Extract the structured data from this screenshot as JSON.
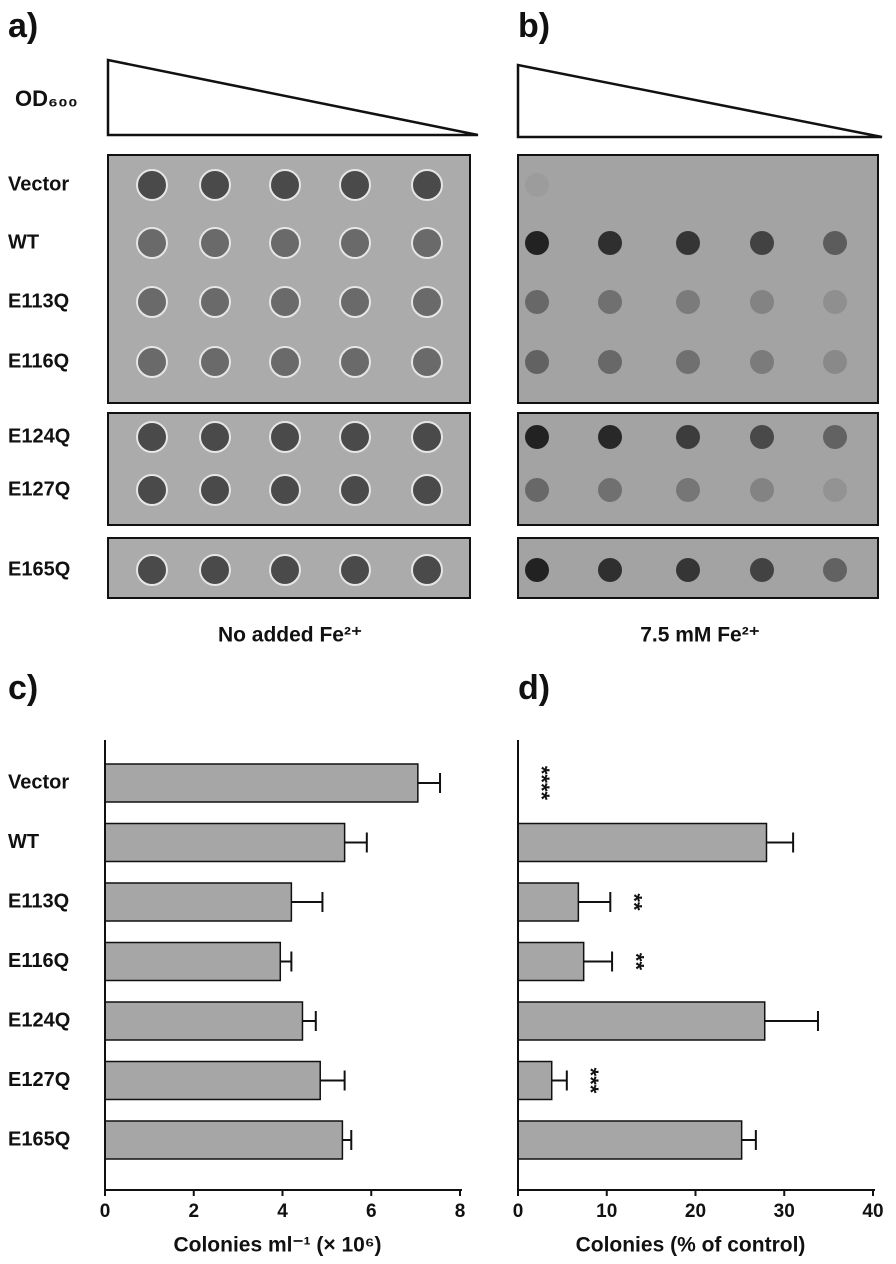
{
  "figure": {
    "od_label": "OD₆₀₀",
    "strains": [
      "Vector",
      "WT",
      "E113Q",
      "E116Q",
      "E124Q",
      "E127Q",
      "E165Q"
    ],
    "panels": [
      {
        "label": "a)",
        "caption": "No added Fe²⁺"
      },
      {
        "label": "b)",
        "caption": "7.5 mM Fe²⁺"
      }
    ]
  },
  "chart_data": [
    {
      "type": "hbar",
      "label": "c)",
      "categories": [
        "Vector",
        "WT",
        "E113Q",
        "E116Q",
        "E124Q",
        "E127Q",
        "E165Q"
      ],
      "values": [
        7.05,
        5.4,
        4.2,
        3.95,
        4.45,
        4.85,
        5.35
      ],
      "errors": [
        0.5,
        0.5,
        0.7,
        0.25,
        0.3,
        0.55,
        0.2
      ],
      "xlabel": "Colonies ml⁻¹ (× 10⁶)",
      "xlim": [
        0,
        8
      ],
      "xticks": [
        0,
        2,
        4,
        6,
        8
      ],
      "color": "#a6a6a6"
    },
    {
      "type": "hbar",
      "label": "d)",
      "values": [
        0,
        28,
        6.8,
        7.4,
        27.8,
        3.8,
        25.2
      ],
      "errors": [
        null,
        3,
        3.6,
        3.2,
        6,
        1.7,
        1.6
      ],
      "annotations": [
        "****",
        null,
        "**",
        "**",
        null,
        "***",
        null
      ],
      "xlabel": "Colonies (% of control)",
      "xlim": [
        0,
        40
      ],
      "xticks": [
        0,
        10,
        20,
        30,
        40
      ],
      "color": "#a6a6a6"
    }
  ]
}
